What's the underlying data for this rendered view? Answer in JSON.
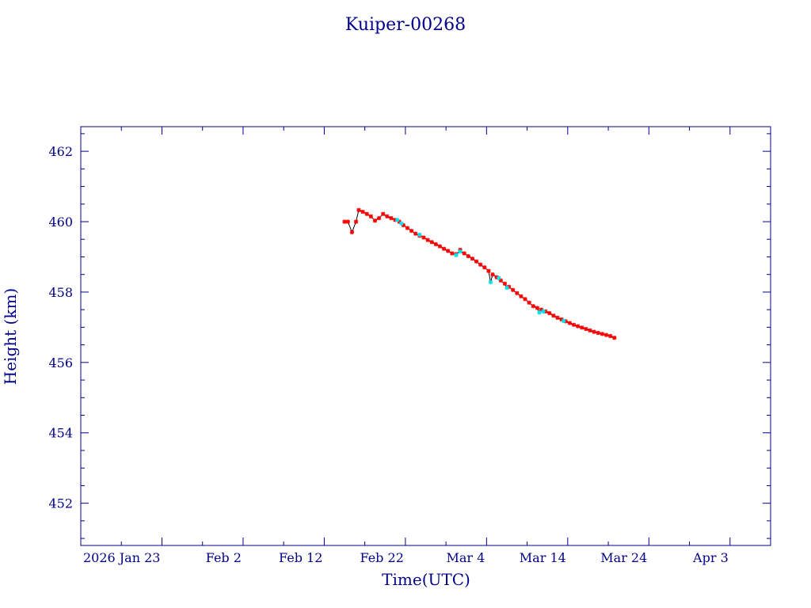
{
  "chart_data": {
    "type": "scatter",
    "title": "Kuiper-00268",
    "xlabel": "Time(UTC)",
    "ylabel": "Height (km)",
    "xlim": [
      "2026-01-13",
      "2026-04-08"
    ],
    "ylim": [
      450.8,
      462.7
    ],
    "x_ticks": [
      {
        "date": "2026-01-23",
        "label": "2026 Jan 23"
      },
      {
        "date": "2026-02-02",
        "label": "Feb  2"
      },
      {
        "date": "2026-02-12",
        "label": "Feb 12"
      },
      {
        "date": "2026-02-22",
        "label": "Feb 22"
      },
      {
        "date": "2026-03-04",
        "label": "Mar  4"
      },
      {
        "date": "2026-03-14",
        "label": "Mar 14"
      },
      {
        "date": "2026-03-24",
        "label": "Mar 24"
      },
      {
        "date": "2026-04-03",
        "label": "Apr  3"
      }
    ],
    "y_ticks": [
      452,
      454,
      456,
      458,
      460,
      462
    ],
    "grid": false,
    "colors": {
      "axis": "#00008b",
      "line": "#000000",
      "primary": "#ff0000",
      "secondary": "#00e5ee"
    },
    "series": [
      {
        "color": "#ff0000",
        "points": [
          [
            "2026-02-14 12:00",
            460.0
          ],
          [
            "2026-02-14 22:00",
            460.0
          ],
          [
            "2026-02-15 10:00",
            459.7
          ],
          [
            "2026-02-15 22:00",
            460.0
          ],
          [
            "2026-02-16 06:00",
            460.33
          ],
          [
            "2026-02-16 18:00",
            460.28
          ],
          [
            "2026-02-17 06:00",
            460.22
          ],
          [
            "2026-02-17 18:00",
            460.15
          ],
          [
            "2026-02-18 06:00",
            460.03
          ],
          [
            "2026-02-18 18:00",
            460.1
          ],
          [
            "2026-02-19 06:00",
            460.22
          ],
          [
            "2026-02-19 18:00",
            460.15
          ],
          [
            "2026-02-20 06:00",
            460.1
          ],
          [
            "2026-02-20 18:00",
            460.05
          ],
          [
            "2026-02-21 06:00",
            460.0
          ],
          [
            "2026-02-21 18:00",
            459.9
          ],
          [
            "2026-02-22 06:00",
            459.82
          ],
          [
            "2026-02-22 18:00",
            459.74
          ],
          [
            "2026-02-23 06:00",
            459.66
          ],
          [
            "2026-02-23 18:00",
            459.6
          ],
          [
            "2026-02-24 06:00",
            459.55
          ],
          [
            "2026-02-24 18:00",
            459.48
          ],
          [
            "2026-02-25 06:00",
            459.42
          ],
          [
            "2026-02-25 18:00",
            459.36
          ],
          [
            "2026-02-26 06:00",
            459.3
          ],
          [
            "2026-02-26 18:00",
            459.23
          ],
          [
            "2026-02-27 06:00",
            459.17
          ],
          [
            "2026-02-27 18:00",
            459.1
          ],
          [
            "2026-02-28 06:00",
            459.08
          ],
          [
            "2026-02-28 18:00",
            459.2
          ],
          [
            "2026-03-01 06:00",
            459.1
          ],
          [
            "2026-03-01 18:00",
            459.02
          ],
          [
            "2026-03-02 06:00",
            458.95
          ],
          [
            "2026-03-02 18:00",
            458.87
          ],
          [
            "2026-03-03 06:00",
            458.78
          ],
          [
            "2026-03-03 18:00",
            458.7
          ],
          [
            "2026-03-04 06:00",
            458.6
          ],
          [
            "2026-03-04 18:00",
            458.5
          ],
          [
            "2026-03-05 06:00",
            458.42
          ],
          [
            "2026-03-05 18:00",
            458.33
          ],
          [
            "2026-03-06 06:00",
            458.24
          ],
          [
            "2026-03-06 18:00",
            458.15
          ],
          [
            "2026-03-07 06:00",
            458.06
          ],
          [
            "2026-03-07 18:00",
            457.97
          ],
          [
            "2026-03-08 06:00",
            457.88
          ],
          [
            "2026-03-08 18:00",
            457.8
          ],
          [
            "2026-03-09 06:00",
            457.7
          ],
          [
            "2026-03-09 18:00",
            457.6
          ],
          [
            "2026-03-10 06:00",
            457.55
          ],
          [
            "2026-03-10 18:00",
            457.5
          ],
          [
            "2026-03-11 06:00",
            457.45
          ],
          [
            "2026-03-11 18:00",
            457.4
          ],
          [
            "2026-03-12 06:00",
            457.33
          ],
          [
            "2026-03-12 18:00",
            457.27
          ],
          [
            "2026-03-13 06:00",
            457.22
          ],
          [
            "2026-03-13 18:00",
            457.17
          ],
          [
            "2026-03-14 06:00",
            457.12
          ],
          [
            "2026-03-14 18:00",
            457.07
          ],
          [
            "2026-03-15 06:00",
            457.03
          ],
          [
            "2026-03-15 18:00",
            456.99
          ],
          [
            "2026-03-16 06:00",
            456.95
          ],
          [
            "2026-03-16 18:00",
            456.91
          ],
          [
            "2026-03-17 06:00",
            456.87
          ],
          [
            "2026-03-17 18:00",
            456.84
          ],
          [
            "2026-03-18 06:00",
            456.81
          ],
          [
            "2026-03-18 18:00",
            456.78
          ],
          [
            "2026-03-19 06:00",
            456.75
          ],
          [
            "2026-03-19 18:00",
            456.7
          ]
        ]
      },
      {
        "color": "#00e5ee",
        "points": [
          [
            "2026-02-21 00:00",
            460.05
          ],
          [
            "2026-02-21 12:00",
            459.95
          ],
          [
            "2026-02-23 18:00",
            459.63
          ],
          [
            "2026-02-28 06:00",
            459.05
          ],
          [
            "2026-02-28 18:00",
            459.15
          ],
          [
            "2026-03-04 12:00",
            458.28
          ],
          [
            "2026-03-05 12:00",
            458.4
          ],
          [
            "2026-03-06 12:00",
            458.12
          ],
          [
            "2026-03-10 12:00",
            457.42
          ],
          [
            "2026-03-11 00:00",
            457.45
          ],
          [
            "2026-03-13 12:00",
            457.18
          ]
        ]
      }
    ]
  }
}
